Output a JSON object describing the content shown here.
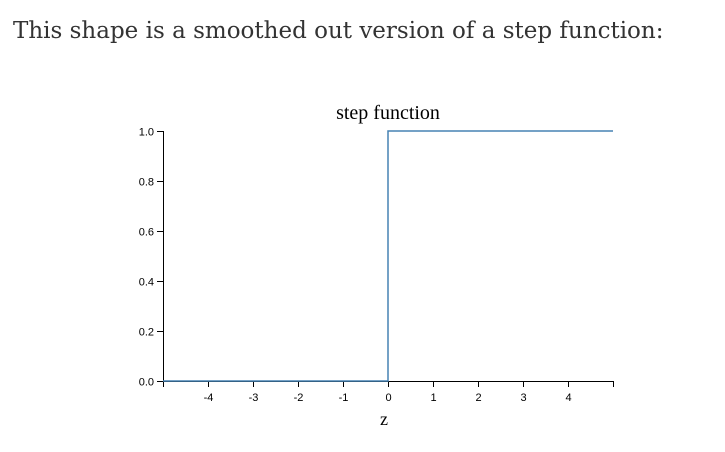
{
  "intro_text": "This shape is a smoothed out version of a step function:",
  "colors": {
    "line": "#4682b4",
    "axis": "#000000"
  },
  "chart_data": {
    "type": "line",
    "title": "step function",
    "xlabel": "z",
    "ylabel": "",
    "xlim": [
      -5,
      5
    ],
    "ylim": [
      0,
      1
    ],
    "x_ticks": [
      -4,
      -3,
      -2,
      -1,
      0,
      1,
      2,
      3,
      4
    ],
    "x_tick_labels": [
      "-4",
      "-3",
      "-2",
      "-1",
      "0",
      "1",
      "2",
      "3",
      "4"
    ],
    "y_ticks": [
      0,
      0.2,
      0.4,
      0.6,
      0.8,
      1
    ],
    "y_tick_labels": [
      "0.0",
      "0.2",
      "0.4",
      "0.6",
      "0.8",
      "1.0"
    ],
    "grid": false,
    "series": [
      {
        "x": [
          -5,
          0,
          0,
          5
        ],
        "y": [
          0,
          0,
          1,
          1
        ]
      }
    ]
  }
}
